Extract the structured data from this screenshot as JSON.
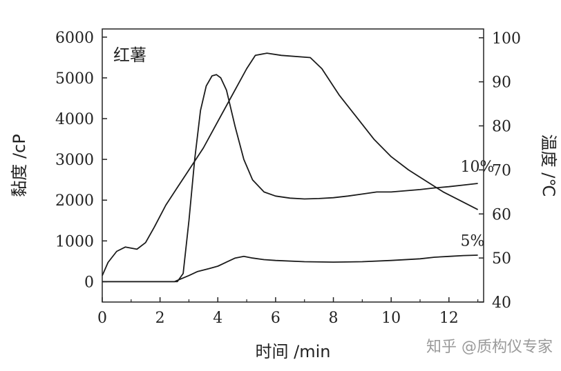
{
  "chart_data": {
    "type": "line",
    "panel_label": "红薯",
    "xlabel": "时间 /min",
    "ylabel_left": "黏度 /cP",
    "ylabel_right": "温度 /℃",
    "xlim": [
      0,
      13.2
    ],
    "ylim_left": [
      -500,
      6200
    ],
    "ylim_right": [
      40,
      102
    ],
    "x_ticks": [
      "0",
      "2",
      "4",
      "6",
      "8",
      "10",
      "12"
    ],
    "y_left_ticks": [
      "0",
      "1000",
      "2000",
      "3000",
      "4000",
      "5000",
      "6000"
    ],
    "y_right_ticks": [
      "40",
      "50",
      "60",
      "70",
      "80",
      "90",
      "100"
    ],
    "grid": false,
    "series": [
      {
        "name": "10%",
        "axis": "left",
        "points": [
          [
            0,
            0
          ],
          [
            2,
            0
          ],
          [
            2.6,
            0
          ],
          [
            2.8,
            200
          ],
          [
            3.0,
            1500
          ],
          [
            3.2,
            3000
          ],
          [
            3.4,
            4200
          ],
          [
            3.6,
            4800
          ],
          [
            3.8,
            5050
          ],
          [
            3.95,
            5080
          ],
          [
            4.1,
            5000
          ],
          [
            4.3,
            4700
          ],
          [
            4.6,
            3800
          ],
          [
            4.9,
            3000
          ],
          [
            5.2,
            2500
          ],
          [
            5.6,
            2200
          ],
          [
            6,
            2100
          ],
          [
            6.5,
            2050
          ],
          [
            7,
            2030
          ],
          [
            7.5,
            2040
          ],
          [
            8,
            2060
          ],
          [
            8.5,
            2100
          ],
          [
            9,
            2150
          ],
          [
            9.5,
            2200
          ],
          [
            10,
            2200
          ],
          [
            10.5,
            2230
          ],
          [
            11,
            2260
          ],
          [
            11.5,
            2300
          ],
          [
            12,
            2330
          ],
          [
            12.5,
            2370
          ],
          [
            13,
            2410
          ]
        ]
      },
      {
        "name": "5%",
        "axis": "left",
        "points": [
          [
            0,
            0
          ],
          [
            2.5,
            0
          ],
          [
            3.0,
            150
          ],
          [
            3.3,
            250
          ],
          [
            3.7,
            320
          ],
          [
            4.0,
            380
          ],
          [
            4.3,
            480
          ],
          [
            4.6,
            580
          ],
          [
            4.9,
            620
          ],
          [
            5.2,
            580
          ],
          [
            5.6,
            540
          ],
          [
            6,
            520
          ],
          [
            7,
            490
          ],
          [
            8,
            480
          ],
          [
            9,
            490
          ],
          [
            10,
            520
          ],
          [
            11,
            560
          ],
          [
            11.5,
            600
          ],
          [
            12,
            620
          ],
          [
            12.5,
            640
          ],
          [
            13,
            650
          ]
        ]
      },
      {
        "name": "温度",
        "axis": "right",
        "points": [
          [
            0,
            46
          ],
          [
            0.2,
            49
          ],
          [
            0.5,
            51.5
          ],
          [
            0.8,
            52.5
          ],
          [
            1.2,
            52
          ],
          [
            1.5,
            53.5
          ],
          [
            1.8,
            57
          ],
          [
            2.2,
            62
          ],
          [
            2.6,
            66
          ],
          [
            3.0,
            70
          ],
          [
            3.5,
            75
          ],
          [
            4.0,
            81
          ],
          [
            4.5,
            87
          ],
          [
            5.0,
            93
          ],
          [
            5.3,
            96
          ],
          [
            5.7,
            96.5
          ],
          [
            6.2,
            96
          ],
          [
            7.2,
            95.5
          ],
          [
            7.6,
            93
          ],
          [
            8.2,
            87
          ],
          [
            8.8,
            82
          ],
          [
            9.4,
            77
          ],
          [
            10,
            73
          ],
          [
            10.6,
            70
          ],
          [
            11.2,
            67.5
          ],
          [
            11.8,
            65
          ],
          [
            12.4,
            63
          ],
          [
            13,
            61
          ]
        ]
      }
    ],
    "annotations": [
      {
        "text": "10%",
        "x": 12.4,
        "y": 2700
      },
      {
        "text": "5%",
        "x": 12.4,
        "y": 880
      }
    ]
  },
  "watermark": "知乎 @质构仪专家"
}
